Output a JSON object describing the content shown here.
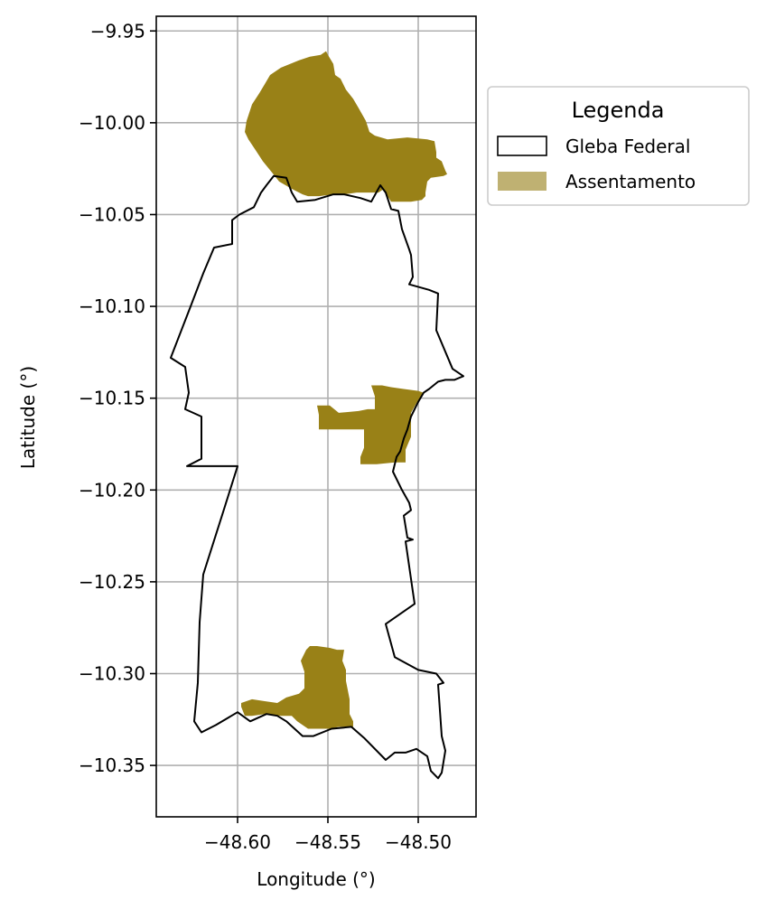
{
  "chart_data": {
    "type": "map",
    "xlabel": "Longitude (°)",
    "ylabel": "Latitude (°)",
    "xlim": [
      -48.645,
      -48.468
    ],
    "ylim": [
      -10.378,
      -9.942
    ],
    "x_ticks": [
      -48.6,
      -48.55,
      -48.5
    ],
    "x_tick_labels": [
      "−48.60",
      "−48.55",
      "−48.50"
    ],
    "y_ticks": [
      -9.95,
      -10.0,
      -10.05,
      -10.1,
      -10.15,
      -10.2,
      -10.25,
      -10.3,
      -10.35
    ],
    "y_tick_labels": [
      "−9.95",
      "−10.00",
      "−10.05",
      "−10.10",
      "−10.15",
      "−10.20",
      "−10.25",
      "−10.30",
      "−10.35"
    ],
    "grid": true,
    "legend": {
      "title": "Legenda",
      "placement": "outside right, upper",
      "entries": [
        {
          "label": "Gleba Federal",
          "style": "outline",
          "color": "#000000"
        },
        {
          "label": "Assentamento",
          "style": "fill",
          "color": "#bfb172"
        }
      ]
    },
    "colors": {
      "gleba_outline": "#000000",
      "assentamento_fill": "#998117",
      "grid": "#b0b0b0"
    },
    "layers": [
      {
        "name": "Gleba Federal",
        "kind": "outline",
        "coordinates": [
          [
            -48.567,
            -10.043
          ],
          [
            -48.557,
            -10.042
          ],
          [
            -48.547,
            -10.039
          ],
          [
            -48.541,
            -10.039
          ],
          [
            -48.532,
            -10.041
          ],
          [
            -48.526,
            -10.043
          ],
          [
            -48.521,
            -10.034
          ],
          [
            -48.518,
            -10.038
          ],
          [
            -48.515,
            -10.047
          ],
          [
            -48.511,
            -10.048
          ],
          [
            -48.509,
            -10.058
          ],
          [
            -48.505,
            -10.069
          ],
          [
            -48.504,
            -10.072
          ],
          [
            -48.503,
            -10.084
          ],
          [
            -48.505,
            -10.088
          ],
          [
            -48.494,
            -10.091
          ],
          [
            -48.489,
            -10.093
          ],
          [
            -48.49,
            -10.113
          ],
          [
            -48.481,
            -10.134
          ],
          [
            -48.475,
            -10.138
          ],
          [
            -48.48,
            -10.14
          ],
          [
            -48.485,
            -10.14
          ],
          [
            -48.489,
            -10.141
          ],
          [
            -48.494,
            -10.145
          ],
          [
            -48.497,
            -10.147
          ],
          [
            -48.5,
            -10.152
          ],
          [
            -48.504,
            -10.16
          ],
          [
            -48.506,
            -10.167
          ],
          [
            -48.508,
            -10.172
          ],
          [
            -48.51,
            -10.179
          ],
          [
            -48.512,
            -10.182
          ],
          [
            -48.514,
            -10.19
          ],
          [
            -48.509,
            -10.2
          ],
          [
            -48.505,
            -10.207
          ],
          [
            -48.504,
            -10.211
          ],
          [
            -48.508,
            -10.214
          ],
          [
            -48.506,
            -10.226
          ],
          [
            -48.503,
            -10.227
          ],
          [
            -48.507,
            -10.228
          ],
          [
            -48.502,
            -10.262
          ],
          [
            -48.518,
            -10.273
          ],
          [
            -48.513,
            -10.291
          ],
          [
            -48.5,
            -10.298
          ],
          [
            -48.49,
            -10.3
          ],
          [
            -48.486,
            -10.305
          ],
          [
            -48.489,
            -10.306
          ],
          [
            -48.487,
            -10.334
          ],
          [
            -48.485,
            -10.342
          ],
          [
            -48.487,
            -10.354
          ],
          [
            -48.489,
            -10.357
          ],
          [
            -48.493,
            -10.353
          ],
          [
            -48.495,
            -10.345
          ],
          [
            -48.501,
            -10.341
          ],
          [
            -48.507,
            -10.343
          ],
          [
            -48.513,
            -10.343
          ],
          [
            -48.518,
            -10.347
          ],
          [
            -48.53,
            -10.335
          ],
          [
            -48.537,
            -10.329
          ],
          [
            -48.548,
            -10.33
          ],
          [
            -48.558,
            -10.334
          ],
          [
            -48.564,
            -10.334
          ],
          [
            -48.573,
            -10.326
          ],
          [
            -48.578,
            -10.323
          ],
          [
            -48.584,
            -10.322
          ],
          [
            -48.593,
            -10.326
          ],
          [
            -48.6,
            -10.321
          ],
          [
            -48.612,
            -10.328
          ],
          [
            -48.62,
            -10.332
          ],
          [
            -48.624,
            -10.326
          ],
          [
            -48.622,
            -10.305
          ],
          [
            -48.621,
            -10.272
          ],
          [
            -48.619,
            -10.246
          ],
          [
            -48.608,
            -10.212
          ],
          [
            -48.6,
            -10.187
          ],
          [
            -48.628,
            -10.187
          ],
          [
            -48.62,
            -10.183
          ],
          [
            -48.62,
            -10.169
          ],
          [
            -48.62,
            -10.16
          ],
          [
            -48.629,
            -10.156
          ],
          [
            -48.627,
            -10.147
          ],
          [
            -48.629,
            -10.133
          ],
          [
            -48.637,
            -10.128
          ],
          [
            -48.626,
            -10.1
          ],
          [
            -48.619,
            -10.082
          ],
          [
            -48.613,
            -10.068
          ],
          [
            -48.603,
            -10.066
          ],
          [
            -48.603,
            -10.053
          ],
          [
            -48.599,
            -10.05
          ],
          [
            -48.591,
            -10.046
          ],
          [
            -48.587,
            -10.038
          ],
          [
            -48.584,
            -10.034
          ],
          [
            -48.58,
            -10.029
          ],
          [
            -48.573,
            -10.03
          ],
          [
            -48.57,
            -10.038
          ],
          [
            -48.567,
            -10.043
          ]
        ]
      },
      {
        "name": "Assentamento",
        "kind": "fill",
        "parts": [
          [
            [
              -48.551,
              -9.961
            ],
            [
              -48.55,
              -9.963
            ],
            [
              -48.547,
              -9.968
            ],
            [
              -48.546,
              -9.974
            ],
            [
              -48.543,
              -9.976
            ],
            [
              -48.54,
              -9.982
            ],
            [
              -48.536,
              -9.987
            ],
            [
              -48.533,
              -9.992
            ],
            [
              -48.529,
              -9.999
            ],
            [
              -48.527,
              -10.005
            ],
            [
              -48.524,
              -10.007
            ],
            [
              -48.517,
              -10.009
            ],
            [
              -48.506,
              -10.008
            ],
            [
              -48.495,
              -10.009
            ],
            [
              -48.491,
              -10.01
            ],
            [
              -48.49,
              -10.016
            ],
            [
              -48.49,
              -10.019
            ],
            [
              -48.487,
              -10.021
            ],
            [
              -48.485,
              -10.026
            ],
            [
              -48.484,
              -10.028
            ],
            [
              -48.486,
              -10.029
            ],
            [
              -48.493,
              -10.03
            ],
            [
              -48.495,
              -10.032
            ],
            [
              -48.496,
              -10.038
            ],
            [
              -48.496,
              -10.04
            ],
            [
              -48.498,
              -10.042
            ],
            [
              -48.504,
              -10.043
            ],
            [
              -48.508,
              -10.043
            ],
            [
              -48.515,
              -10.043
            ],
            [
              -48.517,
              -10.04
            ],
            [
              -48.519,
              -10.036
            ],
            [
              -48.522,
              -10.038
            ],
            [
              -48.528,
              -10.038
            ],
            [
              -48.534,
              -10.038
            ],
            [
              -48.541,
              -10.039
            ],
            [
              -48.547,
              -10.039
            ],
            [
              -48.555,
              -10.04
            ],
            [
              -48.561,
              -10.04
            ],
            [
              -48.564,
              -10.039
            ],
            [
              -48.57,
              -10.036
            ],
            [
              -48.577,
              -10.032
            ],
            [
              -48.581,
              -10.027
            ],
            [
              -48.586,
              -10.021
            ],
            [
              -48.59,
              -10.015
            ],
            [
              -48.594,
              -10.009
            ],
            [
              -48.596,
              -10.005
            ],
            [
              -48.595,
              -9.999
            ],
            [
              -48.592,
              -9.99
            ],
            [
              -48.588,
              -9.984
            ],
            [
              -48.585,
              -9.979
            ],
            [
              -48.582,
              -9.974
            ],
            [
              -48.576,
              -9.97
            ],
            [
              -48.566,
              -9.966
            ],
            [
              -48.56,
              -9.964
            ],
            [
              -48.554,
              -9.963
            ],
            [
              -48.551,
              -9.961
            ]
          ],
          [
            [
              -48.526,
              -10.143
            ],
            [
              -48.524,
              -10.149
            ],
            [
              -48.524,
              -10.156
            ],
            [
              -48.528,
              -10.156
            ],
            [
              -48.533,
              -10.157
            ],
            [
              -48.544,
              -10.158
            ],
            [
              -48.549,
              -10.154
            ],
            [
              -48.556,
              -10.154
            ],
            [
              -48.555,
              -10.159
            ],
            [
              -48.555,
              -10.167
            ],
            [
              -48.548,
              -10.167
            ],
            [
              -48.543,
              -10.167
            ],
            [
              -48.53,
              -10.167
            ],
            [
              -48.53,
              -10.177
            ],
            [
              -48.532,
              -10.182
            ],
            [
              -48.532,
              -10.186
            ],
            [
              -48.523,
              -10.186
            ],
            [
              -48.513,
              -10.185
            ],
            [
              -48.507,
              -10.185
            ],
            [
              -48.507,
              -10.178
            ],
            [
              -48.504,
              -10.171
            ],
            [
              -48.504,
              -10.163
            ],
            [
              -48.504,
              -10.158
            ],
            [
              -48.5,
              -10.151
            ],
            [
              -48.497,
              -10.147
            ],
            [
              -48.5,
              -10.146
            ],
            [
              -48.508,
              -10.145
            ],
            [
              -48.515,
              -10.144
            ],
            [
              -48.52,
              -10.143
            ],
            [
              -48.526,
              -10.143
            ]
          ],
          [
            [
              -48.56,
              -10.285
            ],
            [
              -48.556,
              -10.285
            ],
            [
              -48.549,
              -10.286
            ],
            [
              -48.545,
              -10.287
            ],
            [
              -48.541,
              -10.287
            ],
            [
              -48.542,
              -10.293
            ],
            [
              -48.54,
              -10.298
            ],
            [
              -48.54,
              -10.304
            ],
            [
              -48.538,
              -10.314
            ],
            [
              -48.538,
              -10.322
            ],
            [
              -48.536,
              -10.326
            ],
            [
              -48.536,
              -10.329
            ],
            [
              -48.539,
              -10.329
            ],
            [
              -48.544,
              -10.329
            ],
            [
              -48.549,
              -10.33
            ],
            [
              -48.556,
              -10.33
            ],
            [
              -48.561,
              -10.33
            ],
            [
              -48.567,
              -10.326
            ],
            [
              -48.57,
              -10.323
            ],
            [
              -48.576,
              -10.323
            ],
            [
              -48.585,
              -10.322
            ],
            [
              -48.592,
              -10.323
            ],
            [
              -48.596,
              -10.323
            ],
            [
              -48.598,
              -10.318
            ],
            [
              -48.598,
              -10.316
            ],
            [
              -48.592,
              -10.314
            ],
            [
              -48.585,
              -10.315
            ],
            [
              -48.578,
              -10.316
            ],
            [
              -48.573,
              -10.313
            ],
            [
              -48.566,
              -10.311
            ],
            [
              -48.563,
              -10.308
            ],
            [
              -48.563,
              -10.303
            ],
            [
              -48.563,
              -10.299
            ],
            [
              -48.565,
              -10.293
            ],
            [
              -48.562,
              -10.287
            ],
            [
              -48.56,
              -10.285
            ]
          ]
        ]
      }
    ]
  }
}
